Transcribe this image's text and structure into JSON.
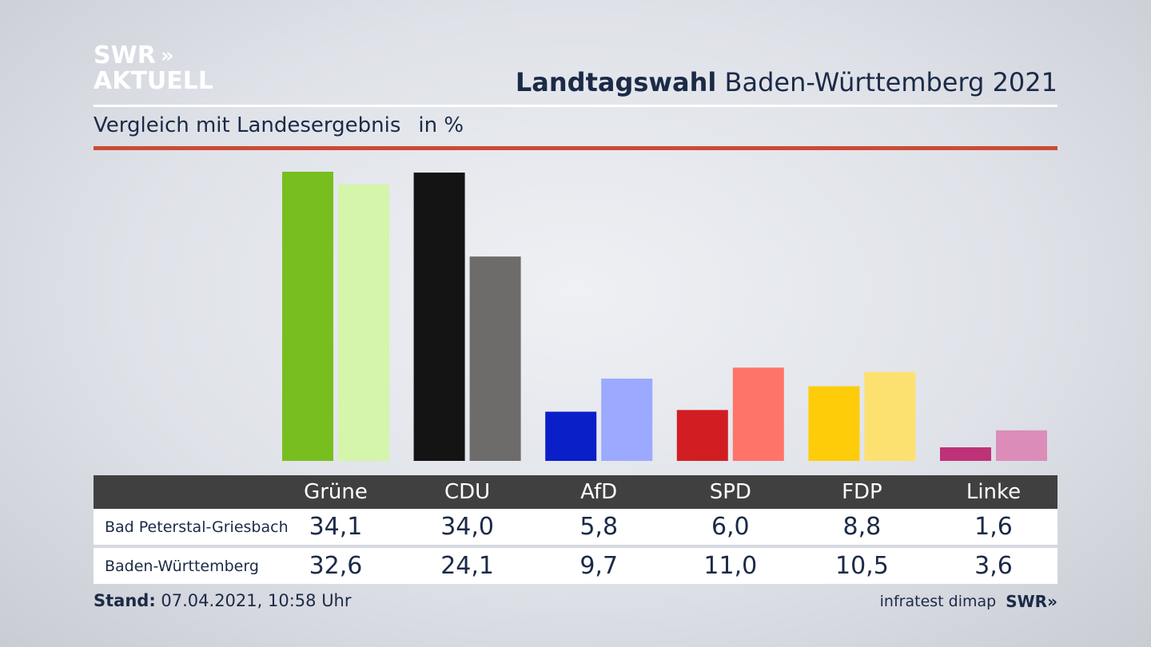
{
  "logo": {
    "line1": "SWR",
    "arrows": "»",
    "line2": "AKTUELL"
  },
  "header": {
    "title_bold": "Landtagswahl",
    "title_rest": "Baden-Württemberg 2021",
    "subtitle": "Vergleich mit Landesergebnis",
    "unit": "in %"
  },
  "chart_data": {
    "type": "bar",
    "categories": [
      "Grüne",
      "CDU",
      "AfD",
      "SPD",
      "FDP",
      "Linke"
    ],
    "series": [
      {
        "name": "Bad Peterstal-Griesbach",
        "values": [
          34.1,
          34.0,
          5.8,
          6.0,
          8.8,
          1.6
        ],
        "colors": [
          "#78be1e",
          "#141414",
          "#0a1fc8",
          "#d21e23",
          "#ffcc0a",
          "#be3278"
        ]
      },
      {
        "name": "Baden-Württemberg",
        "values": [
          32.6,
          24.1,
          9.7,
          11.0,
          10.5,
          3.6
        ],
        "colors": [
          "#d4f5aa",
          "#6e6c6a",
          "#9ba9ff",
          "#ff7469",
          "#fce170",
          "#dc8cb9"
        ]
      }
    ],
    "ylim": [
      0,
      34.1
    ]
  },
  "table": {
    "rows": [
      {
        "label": "Bad Peterstal-Griesbach",
        "values": [
          "34,1",
          "34,0",
          "5,8",
          "6,0",
          "8,8",
          "1,6"
        ]
      },
      {
        "label": "Baden-Württemberg",
        "values": [
          "32,6",
          "24,1",
          "9,7",
          "11,0",
          "10,5",
          "3,6"
        ]
      }
    ]
  },
  "footer": {
    "stand_label": "Stand:",
    "stand_value": "07.04.2021, 10:58 Uhr",
    "source": "infratest dimap",
    "source_logo": "SWR»"
  },
  "colors": {
    "accent_red": "#cc4a35",
    "text": "#1b2a47",
    "table_header": "#404040"
  }
}
